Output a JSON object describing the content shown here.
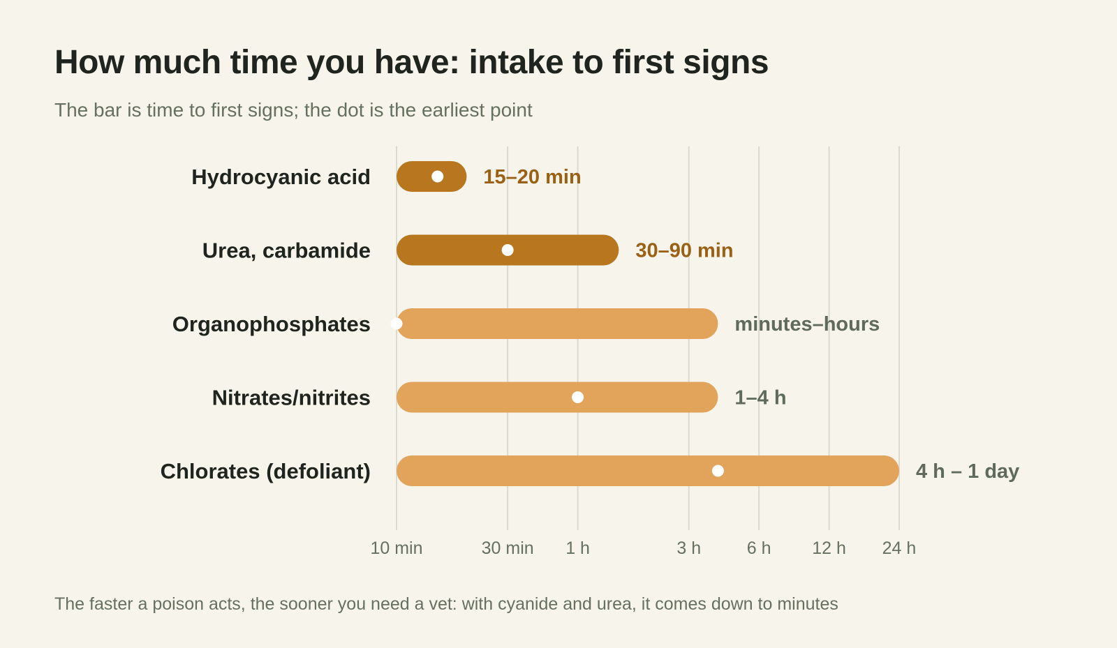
{
  "title": "How much time you have: intake to first signs",
  "subtitle": "The bar is time to first signs; the dot is the earliest point",
  "footnote": "The faster a poison acts, the sooner you need a vet: with cyanide and urea, it comes down to minutes",
  "colors": {
    "background": "#f7f4ec",
    "fast_bar": "#b8771f",
    "fast_label": "#9a6014",
    "slow_bar": "#e2a35a",
    "slow_label": "#5f6a5b",
    "category_text": "#1f241e",
    "grid": "#dcd9cf",
    "tick_text": "#66705f",
    "dot": "#ffffff"
  },
  "chart_data": {
    "type": "bar",
    "orientation": "horizontal",
    "x_scale": "log",
    "x_unit": "minutes",
    "x_ticks": [
      {
        "value": 10,
        "label": "10 min"
      },
      {
        "value": 30,
        "label": "30 min"
      },
      {
        "value": 60,
        "label": "1 h"
      },
      {
        "value": 180,
        "label": "3 h"
      },
      {
        "value": 360,
        "label": "6 h"
      },
      {
        "value": 720,
        "label": "12 h"
      },
      {
        "value": 1440,
        "label": "24 h"
      }
    ],
    "grid": true,
    "series": [
      {
        "category": "Hydrocyanic acid",
        "start": 10,
        "end": 20,
        "earliest": 15,
        "value_label": "15–20 min",
        "group": "fast"
      },
      {
        "category": "Urea, carbamide",
        "start": 10,
        "end": 90,
        "earliest": 30,
        "value_label": "30–90 min",
        "group": "fast"
      },
      {
        "category": "Organophosphates",
        "start": 10,
        "end": 240,
        "earliest": 10,
        "value_label": "minutes–hours",
        "group": "slow"
      },
      {
        "category": "Nitrates/nitrites",
        "start": 10,
        "end": 240,
        "earliest": 60,
        "value_label": "1–4 h",
        "group": "slow"
      },
      {
        "category": "Chlorates (defoliant)",
        "start": 10,
        "end": 1440,
        "earliest": 240,
        "value_label": "4 h – 1 day",
        "group": "slow"
      }
    ]
  }
}
